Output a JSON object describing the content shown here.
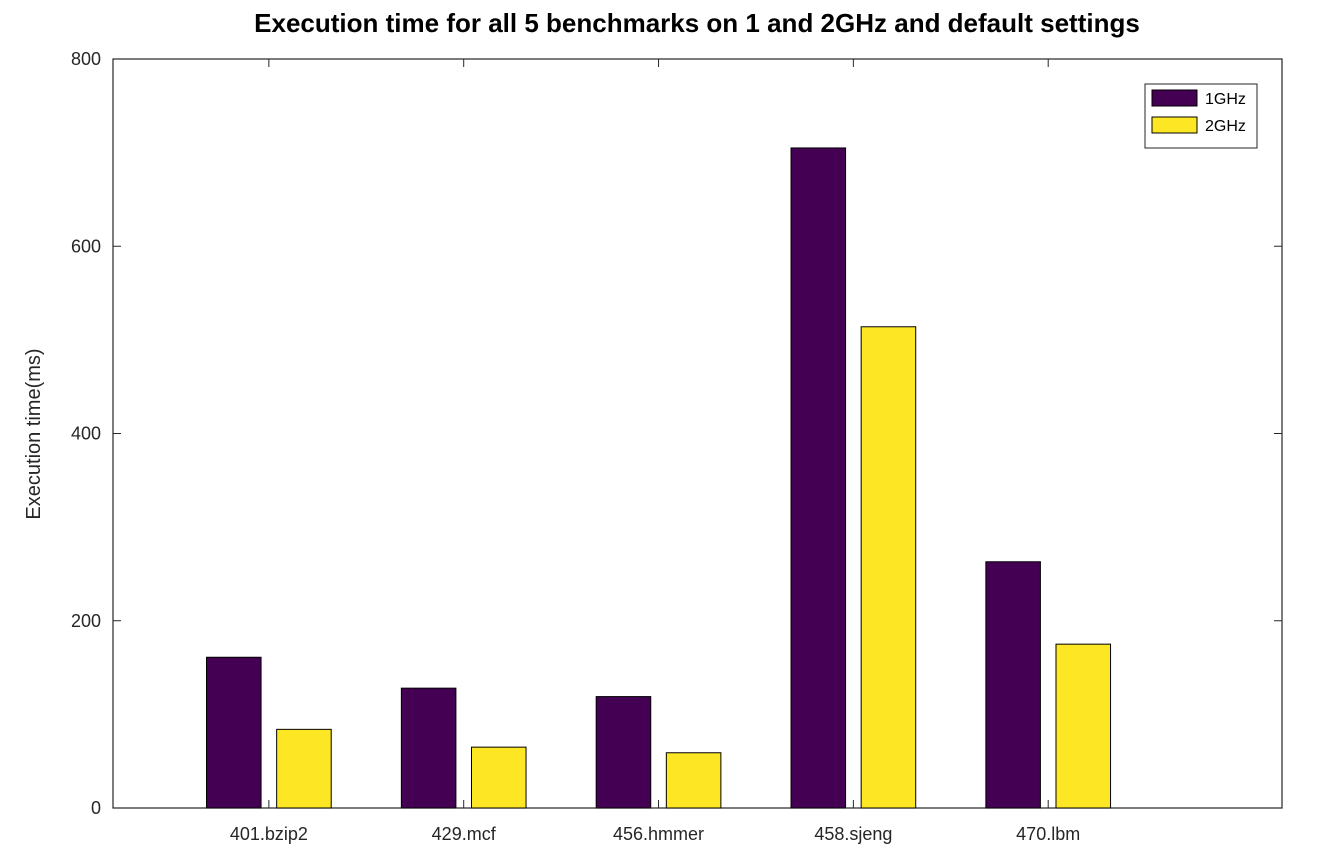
{
  "chart_data": {
    "type": "bar",
    "title": "Execution time for all 5 benchmarks on 1 and 2GHz and default settings",
    "xlabel": "",
    "ylabel": "Execution time(ms)",
    "categories": [
      "401.bzip2",
      "429.mcf",
      "456.hmmer",
      "458.sjeng",
      "470.lbm"
    ],
    "series": [
      {
        "name": "1GHz",
        "color": "#440154",
        "values": [
          161,
          128,
          119,
          705,
          263
        ]
      },
      {
        "name": "2GHz",
        "color": "#fde725",
        "values": [
          84,
          65,
          59,
          514,
          175
        ]
      }
    ],
    "ylim": [
      0,
      800
    ],
    "yticks": [
      "0",
      "200",
      "400",
      "600",
      "800"
    ],
    "xlim": [
      0.2,
      6.2
    ],
    "grid": false,
    "legend_position": "top-right"
  }
}
